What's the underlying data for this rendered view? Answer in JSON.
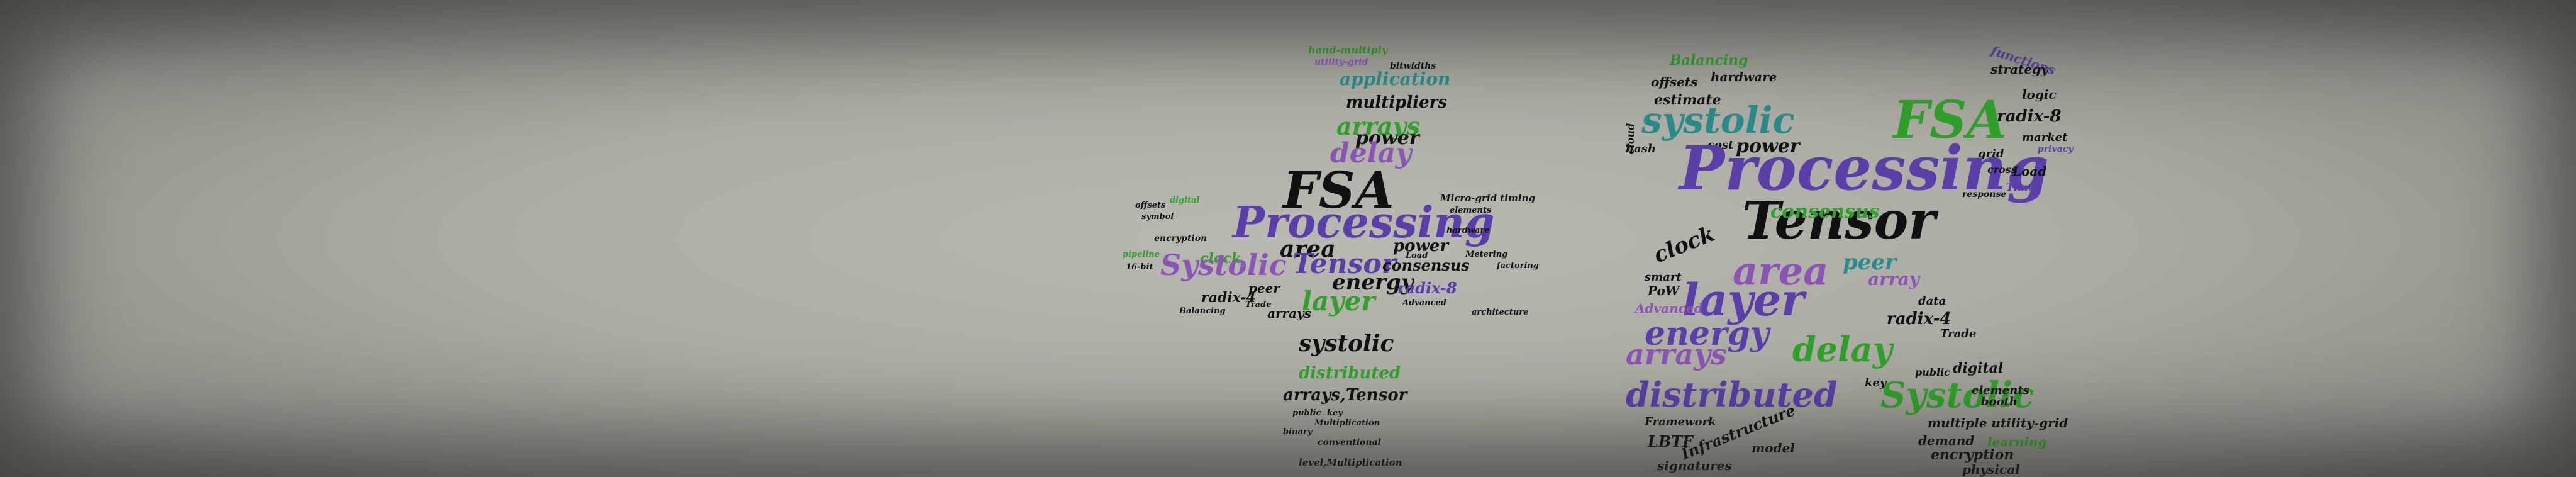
{
  "colors": {
    "purple": "#5a3fa8",
    "violet": "#8a55b5",
    "green": "#2fa12a",
    "teal": "#2a8c8a",
    "black": "#111111",
    "grey": "#7a7a74",
    "mauve": "#9a6f8f"
  },
  "plus_cloud": {
    "fsa": "FSA",
    "processing": "Processing",
    "systolic_a": "Systolic",
    "tensor": "Tensor",
    "layer": "layer",
    "area": "area",
    "energy": "energy",
    "delay": "delay",
    "arrays": "arrays",
    "multipliers": "multipliers",
    "application": "application",
    "systolic_b": "systolic",
    "distributed": "distributed",
    "arrays_tensor": "arrays,Tensor",
    "consensus": "consensus",
    "power": "power",
    "radix8": "radix-8",
    "radix4": "radix-4",
    "peer": "peer",
    "clock": "clock",
    "balancing": "Balancing",
    "micro_grid": "Micro-grid timing",
    "encryption": "encryption",
    "offsets": "offsets",
    "multiplication": "Multiplication",
    "conventional": "conventional",
    "level_mult": "level,Multiplication",
    "architecture": "architecture",
    "advanced": "Advanced",
    "trade": "Trade",
    "metering": "Metering",
    "factoring": "factoring",
    "hardware": "hardware",
    "elements": "elements",
    "load": "Load",
    "bitwidths": "bitwidths",
    "utility_grid": "utility-grid",
    "hand_multiply": "hand-multiply",
    "symbol": "symbol",
    "digital": "digital",
    "public": "public",
    "key": "key",
    "binary": "binary",
    "pipeline": "pipeline",
    "bits": "16-bit"
  },
  "times_cloud": {
    "processing": "Processing",
    "tensor": "Tensor",
    "fsa": "FSA",
    "systolic_a": "systolic",
    "systolic_b": "Systolic",
    "layer": "layer",
    "area": "area",
    "energy": "energy",
    "delay": "delay",
    "distributed": "distributed",
    "arrays": "arrays",
    "consensus": "consensus",
    "clock": "clock",
    "peer": "peer",
    "array": "array",
    "power": "power",
    "radix8": "radix-8",
    "radix4": "radix-4",
    "balancing": "Balancing",
    "hardware": "hardware",
    "estimate": "estimate",
    "offsets": "offsets",
    "cost": "cost",
    "hash": "hash",
    "grid": "grid",
    "strategy": "strategy",
    "logic": "logic",
    "market": "market",
    "privacy": "privacy",
    "load": "Load",
    "time": "Time",
    "functions": "functions",
    "cloud": "cloud",
    "smart": "smart",
    "pow": "PoW",
    "advanced": "Advanced",
    "data": "data",
    "trade": "Trade",
    "digital": "digital",
    "booth": "booth",
    "public": "public",
    "key": "key",
    "elements": "elements",
    "framework": "Framework",
    "lbtf": "LBTF",
    "infrastructure": "Infrastructure",
    "model": "model",
    "demand": "demand",
    "multiple": "multiple utility-grid",
    "learning": "learning",
    "encryption": "encryption",
    "signatures": "signatures",
    "physical": "physical",
    "cross": "cross",
    "response": "response"
  }
}
